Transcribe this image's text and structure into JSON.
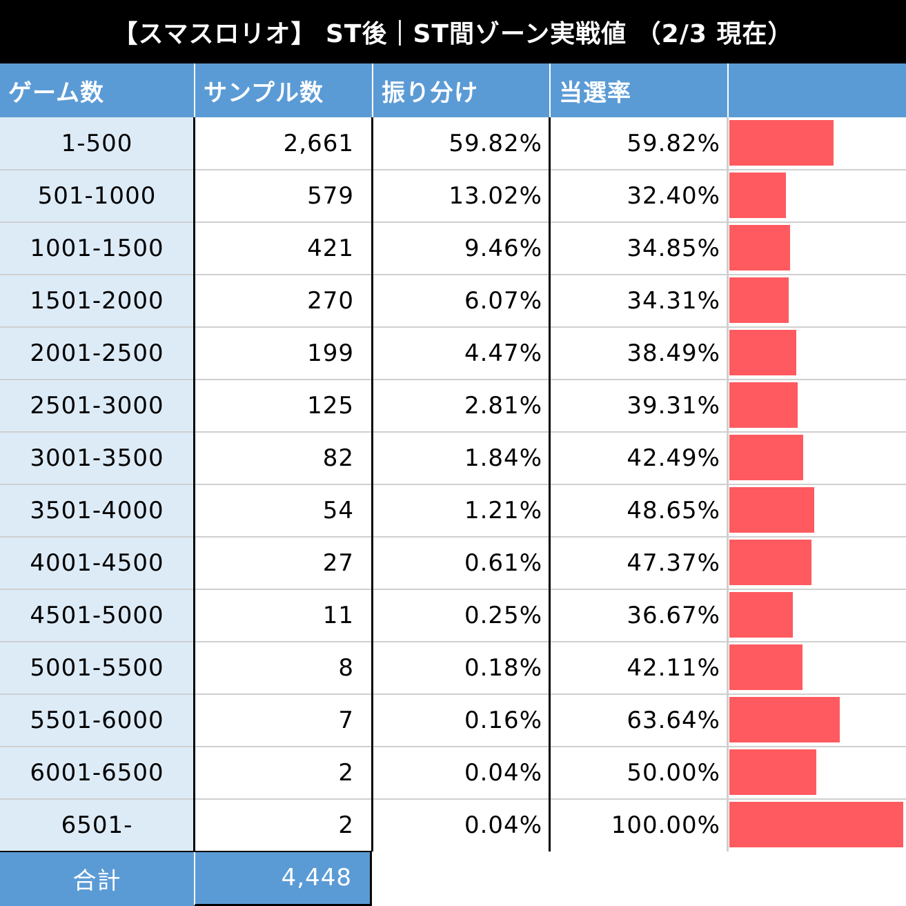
{
  "title": "【スマスロリオ】 ST後｜ST間ゾーン実戦値 （2/3 現在）",
  "headers": {
    "games": "ゲーム数",
    "samples": "サンプル数",
    "distribution": "振り分け",
    "hit_rate": "当選率",
    "bar": ""
  },
  "chart_data": {
    "type": "table",
    "title": "【スマスロリオ】 ST後｜ST間ゾーン実戦値 （2/3 現在）",
    "columns": [
      "ゲーム数",
      "サンプル数",
      "振り分け",
      "当選率"
    ],
    "rows": [
      {
        "games": "1-500",
        "samples": "2,661",
        "distribution": "59.82%",
        "hit_rate": "59.82%",
        "hit_value": 59.82
      },
      {
        "games": "501-1000",
        "samples": "579",
        "distribution": "13.02%",
        "hit_rate": "32.40%",
        "hit_value": 32.4
      },
      {
        "games": "1001-1500",
        "samples": "421",
        "distribution": "9.46%",
        "hit_rate": "34.85%",
        "hit_value": 34.85
      },
      {
        "games": "1501-2000",
        "samples": "270",
        "distribution": "6.07%",
        "hit_rate": "34.31%",
        "hit_value": 34.31
      },
      {
        "games": "2001-2500",
        "samples": "199",
        "distribution": "4.47%",
        "hit_rate": "38.49%",
        "hit_value": 38.49
      },
      {
        "games": "2501-3000",
        "samples": "125",
        "distribution": "2.81%",
        "hit_rate": "39.31%",
        "hit_value": 39.31
      },
      {
        "games": "3001-3500",
        "samples": "82",
        "distribution": "1.84%",
        "hit_rate": "42.49%",
        "hit_value": 42.49
      },
      {
        "games": "3501-4000",
        "samples": "54",
        "distribution": "1.21%",
        "hit_rate": "48.65%",
        "hit_value": 48.65
      },
      {
        "games": "4001-4500",
        "samples": "27",
        "distribution": "0.61%",
        "hit_rate": "47.37%",
        "hit_value": 47.37
      },
      {
        "games": "4501-5000",
        "samples": "11",
        "distribution": "0.25%",
        "hit_rate": "36.67%",
        "hit_value": 36.67
      },
      {
        "games": "5001-5500",
        "samples": "8",
        "distribution": "0.18%",
        "hit_rate": "42.11%",
        "hit_value": 42.11
      },
      {
        "games": "5501-6000",
        "samples": "7",
        "distribution": "0.16%",
        "hit_rate": "63.64%",
        "hit_value": 63.64
      },
      {
        "games": "6001-6500",
        "samples": "2",
        "distribution": "0.04%",
        "hit_rate": "50.00%",
        "hit_value": 50.0
      },
      {
        "games": "6501-",
        "samples": "2",
        "distribution": "0.04%",
        "hit_rate": "100.00%",
        "hit_value": 100.0
      }
    ],
    "total": {
      "label": "合計",
      "samples": "4,448"
    },
    "bar_color": "#ff5a5f",
    "header_color": "#5b9bd5",
    "first_col_color": "#ddebf7"
  }
}
